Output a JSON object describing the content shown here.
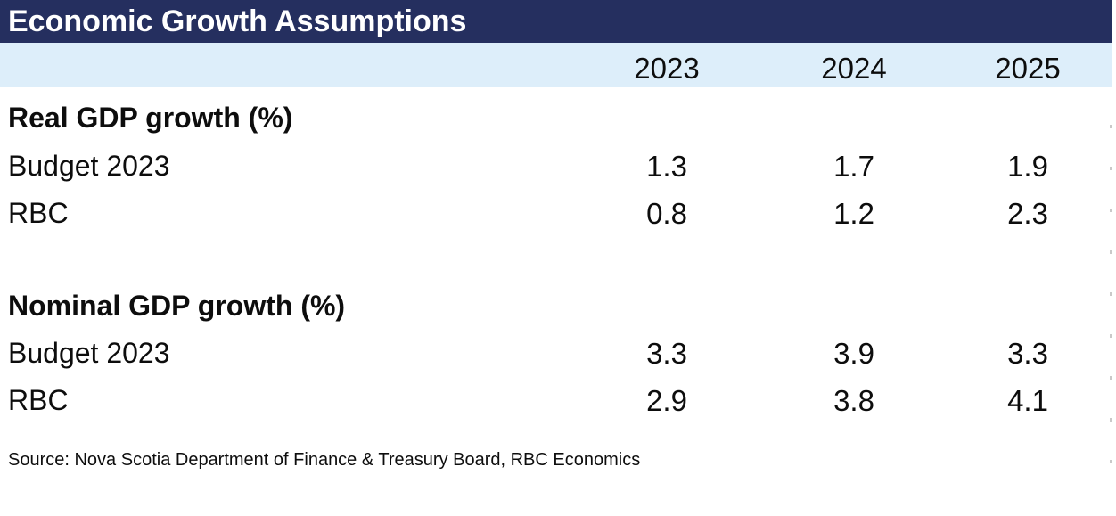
{
  "title": "Economic Growth Assumptions",
  "colors": {
    "title_bar_bg": "#252f5f",
    "title_text": "#ffffff",
    "year_row_bg": "#ddeefa",
    "body_text": "#0d0d0d",
    "gridline_dots": "#c9c9c9"
  },
  "table": {
    "year_columns": [
      "2023",
      "2024",
      "2025"
    ],
    "sections": [
      {
        "heading": "Real GDP growth (%)",
        "rows": [
          {
            "label": "Budget 2023",
            "values": [
              "1.3",
              "1.7",
              "1.9"
            ]
          },
          {
            "label": "RBC",
            "values": [
              "0.8",
              "1.2",
              "2.3"
            ]
          }
        ]
      },
      {
        "heading": "Nominal GDP growth (%)",
        "rows": [
          {
            "label": "Budget 2023",
            "values": [
              "3.3",
              "3.9",
              "3.3"
            ]
          },
          {
            "label": "RBC",
            "values": [
              "2.9",
              "3.8",
              "4.1"
            ]
          }
        ]
      }
    ]
  },
  "source": "Source: Nova Scotia Department of Finance & Treasury Board, RBC Economics",
  "chart_data": {
    "type": "table",
    "title": "Economic Growth Assumptions",
    "columns": [
      "",
      "2023",
      "2024",
      "2025"
    ],
    "rows": [
      [
        "Real GDP growth (%)",
        "",
        "",
        ""
      ],
      [
        "Budget 2023",
        1.3,
        1.7,
        1.9
      ],
      [
        "RBC",
        0.8,
        1.2,
        2.3
      ],
      [
        "Nominal GDP growth (%)",
        "",
        "",
        ""
      ],
      [
        "Budget 2023",
        3.3,
        3.9,
        3.3
      ],
      [
        "RBC",
        2.9,
        3.8,
        4.1
      ]
    ],
    "source": "Source: Nova Scotia Department of Finance & Treasury Board, RBC Economics"
  }
}
